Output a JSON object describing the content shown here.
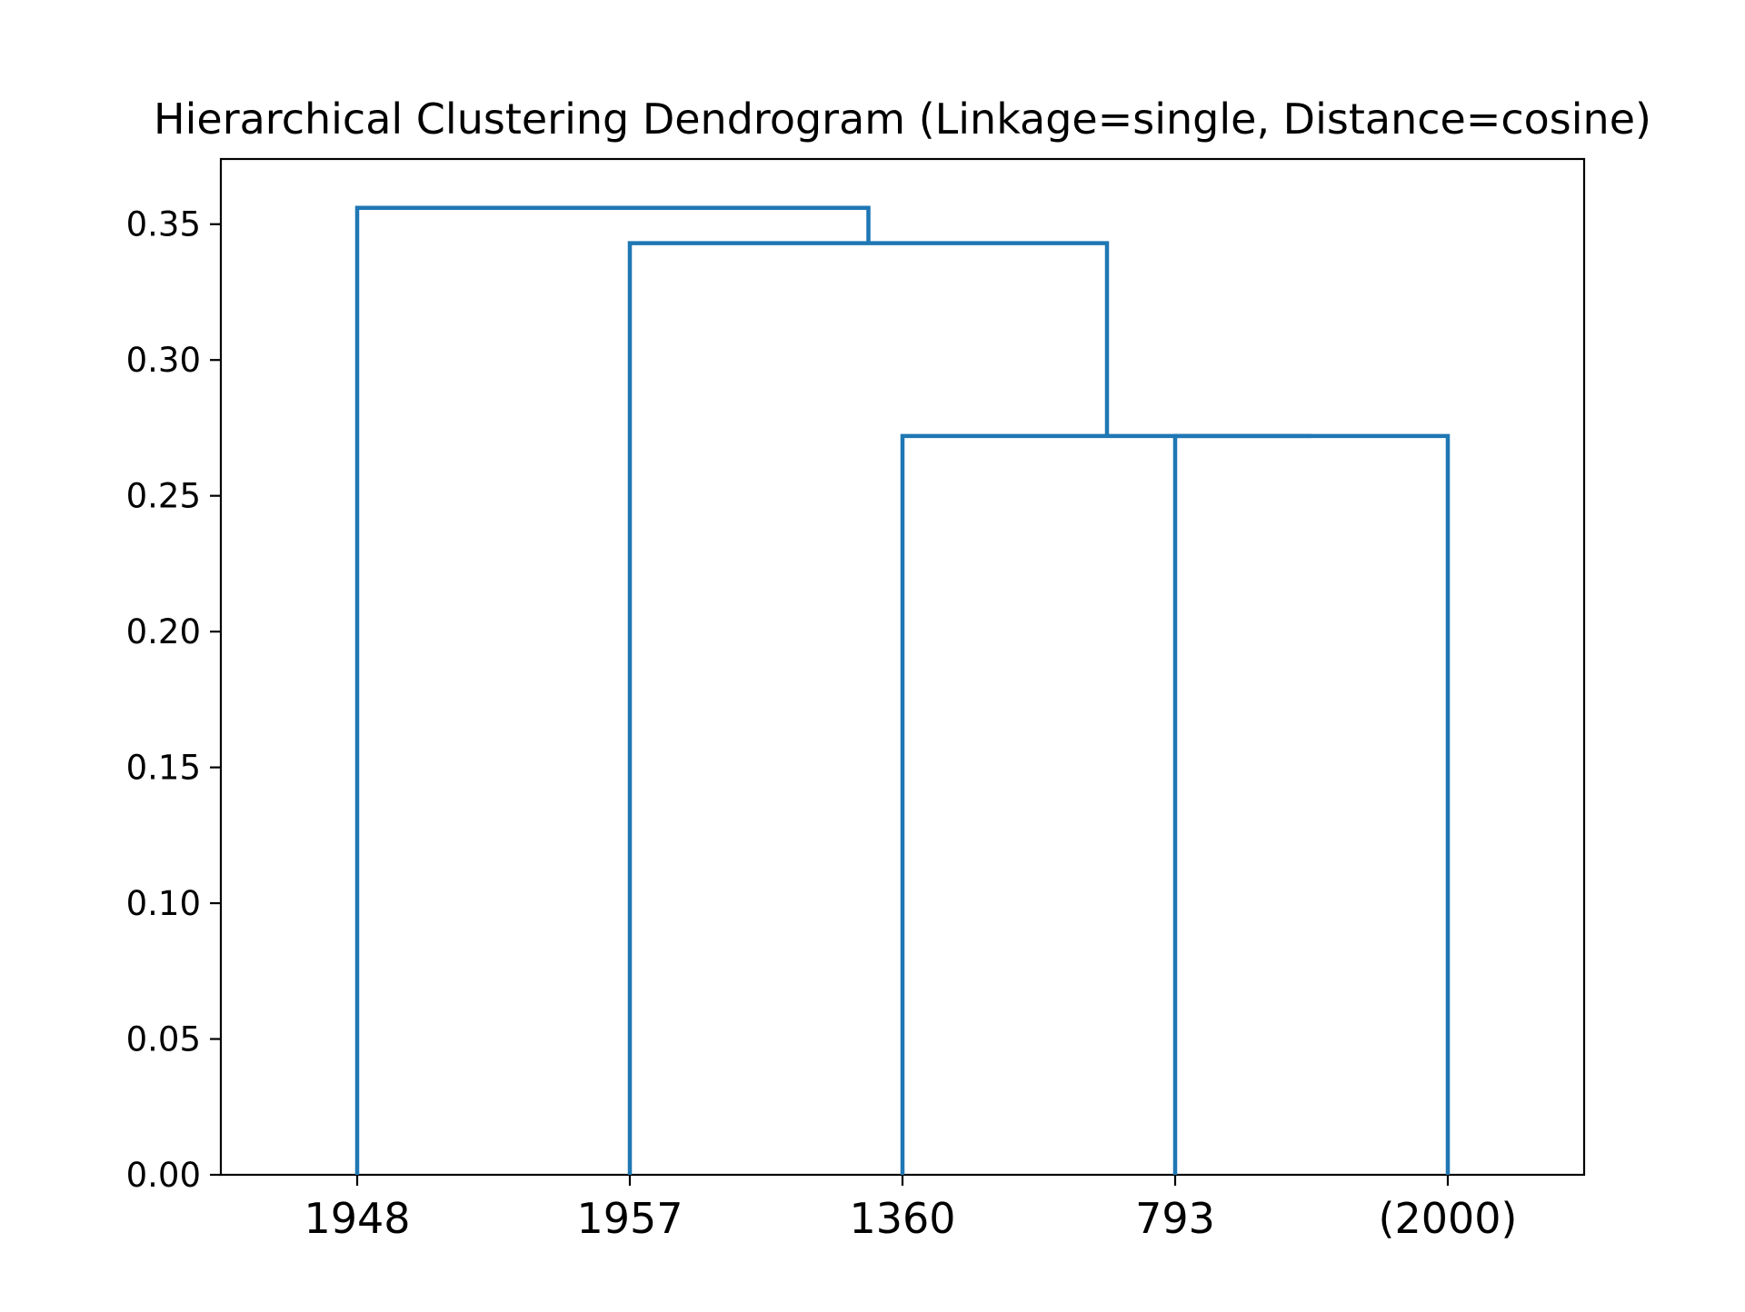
{
  "chart_data": {
    "type": "dendrogram",
    "title": "Hierarchical Clustering Dendrogram (Linkage=single, Distance=cosine)",
    "xlabel": "",
    "ylabel": "",
    "leaves": [
      "1948",
      "1957",
      "1360",
      "793",
      "(2000)"
    ],
    "yticks": [
      "0.00",
      "0.05",
      "0.10",
      "0.15",
      "0.20",
      "0.25",
      "0.30",
      "0.35"
    ],
    "ylim": [
      0,
      0.374
    ],
    "merges": [
      {
        "left": "793",
        "right": "(2000)",
        "height": 0.272
      },
      {
        "left": "1360",
        "right": "793+(2000)",
        "height": 0.272
      },
      {
        "left": "1957",
        "right": "1360+793+(2000)",
        "height": 0.343
      },
      {
        "left": "1948",
        "right": "1957+1360+793+(2000)",
        "height": 0.356
      }
    ],
    "grid": false,
    "legend": "none",
    "line_color": "#1f77b4"
  }
}
